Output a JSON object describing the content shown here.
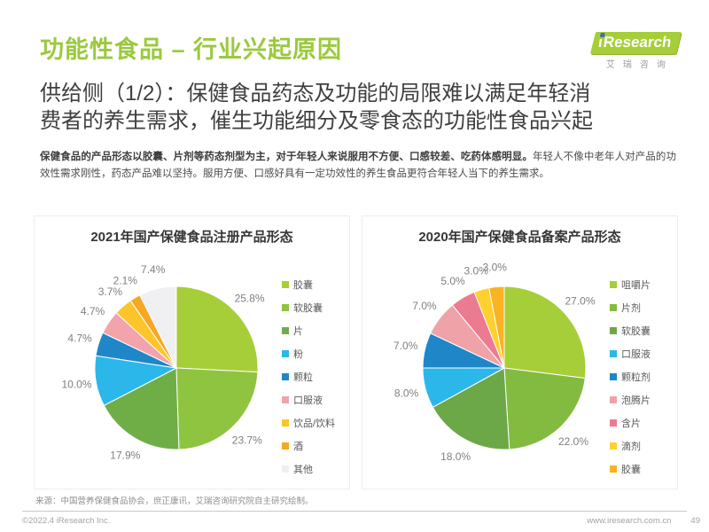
{
  "header": {
    "title": "功能性食品 – 行业兴起原因",
    "subtitle_lines": [
      "供给侧（1/2）：保健食品药态及功能的局限难以满足年轻消",
      "费者的养生需求，催生功能细分及零食态的功能性食品兴起"
    ],
    "logo": {
      "brand_i": "ı",
      "brand": "Research",
      "subtext": "艾瑞咨询"
    }
  },
  "body": {
    "lead_bold": "保健食品的产品形态以胶囊、片剂等药态剂型为主，对于年轻人来说服用不方便、口感较差、吃药体感明显。",
    "rest": "年轻人不像中老年人对产品的功效性需求刚性，药态产品难以坚持。服用方便、口感好具有一定功效性的养生食品更符合年轻人当下的养生需求。"
  },
  "chart_data": [
    {
      "type": "pie",
      "title": "2021年国产保健食品注册产品形态",
      "categories": [
        "胶囊",
        "软胶囊",
        "片",
        "粉",
        "颗粒",
        "口服液",
        "饮品/饮料",
        "酒",
        "其他"
      ],
      "values": [
        25.8,
        23.7,
        17.9,
        10.0,
        4.7,
        4.7,
        3.7,
        2.1,
        7.4
      ],
      "labels": [
        "25.8%",
        "23.7%",
        "17.9%",
        "10.0%",
        "4.7%",
        "4.7%",
        "3.7%",
        "2.1%",
        "7.4%"
      ],
      "colors": [
        "#A6CE39",
        "#8EC43F",
        "#6FAE47",
        "#2BB7EA",
        "#1F86C8",
        "#F2A3AB",
        "#FDC529",
        "#F6A723",
        "#F0F0F2"
      ],
      "start_angle_deg": 0,
      "direction": "clockwise",
      "legend_position": "right"
    },
    {
      "type": "pie",
      "title": "2020年国产保健食品备案产品形态",
      "categories": [
        "咀嚼片",
        "片剂",
        "软胶囊",
        "口服液",
        "颗粒剂",
        "泡腾片",
        "含片",
        "滴剂",
        "胶囊"
      ],
      "values": [
        27.0,
        22.0,
        18.0,
        8.0,
        7.0,
        7.0,
        5.0,
        3.0,
        3.0
      ],
      "labels": [
        "27.0%",
        "22.0%",
        "18.0%",
        "8.0%",
        "7.0%",
        "7.0%",
        "5.0%",
        "3.0%",
        "3.0%"
      ],
      "colors": [
        "#A6CE39",
        "#83BB41",
        "#6CA847",
        "#2BB7EA",
        "#1F86C8",
        "#F0A2A9",
        "#EC7B92",
        "#FFD02E",
        "#F9B323"
      ],
      "start_angle_deg": 0,
      "direction": "clockwise",
      "legend_position": "right"
    }
  ],
  "footer": {
    "source": "来源：中国营养保健食品协会，庶正康讯，艾瑞咨询研究院自主研究绘制。",
    "copyright": "©2022.4 iResearch Inc.",
    "website": "www.iresearch.com.cn",
    "page_number": "49"
  },
  "colors": {
    "accent_green": "#A6CE39",
    "title_green": "#9BC93D"
  }
}
